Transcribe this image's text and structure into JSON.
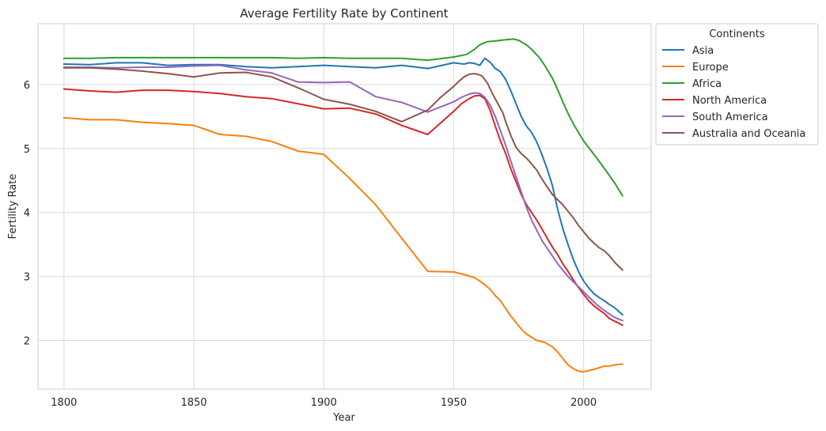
{
  "chart_data": {
    "type": "line",
    "title": "Average Fertility Rate by Continent",
    "xlabel": "Year",
    "ylabel": "Fertility Rate",
    "xlim": [
      1790,
      2026
    ],
    "ylim": [
      1.24,
      6.95
    ],
    "xticks": [
      1800,
      1850,
      1900,
      1950,
      2000
    ],
    "yticks": [
      2,
      3,
      4,
      5,
      6
    ],
    "grid": true,
    "legend": {
      "title": "Continents",
      "position": "outside-right-top"
    },
    "series": [
      {
        "name": "Asia",
        "color": "#1f77b4",
        "points": [
          [
            1800,
            6.32
          ],
          [
            1810,
            6.31
          ],
          [
            1820,
            6.34
          ],
          [
            1830,
            6.34
          ],
          [
            1840,
            6.3
          ],
          [
            1850,
            6.31
          ],
          [
            1860,
            6.31
          ],
          [
            1870,
            6.28
          ],
          [
            1880,
            6.26
          ],
          [
            1890,
            6.28
          ],
          [
            1900,
            6.3
          ],
          [
            1910,
            6.28
          ],
          [
            1920,
            6.26
          ],
          [
            1930,
            6.3
          ],
          [
            1940,
            6.25
          ],
          [
            1950,
            6.34
          ],
          [
            1952,
            6.33
          ],
          [
            1954,
            6.32
          ],
          [
            1956,
            6.34
          ],
          [
            1958,
            6.33
          ],
          [
            1960,
            6.3
          ],
          [
            1962,
            6.41
          ],
          [
            1964,
            6.35
          ],
          [
            1966,
            6.25
          ],
          [
            1968,
            6.2
          ],
          [
            1970,
            6.08
          ],
          [
            1972,
            5.9
          ],
          [
            1974,
            5.7
          ],
          [
            1976,
            5.5
          ],
          [
            1978,
            5.35
          ],
          [
            1980,
            5.25
          ],
          [
            1982,
            5.1
          ],
          [
            1984,
            4.9
          ],
          [
            1986,
            4.68
          ],
          [
            1988,
            4.42
          ],
          [
            1990,
            4.05
          ],
          [
            1992,
            3.75
          ],
          [
            1994,
            3.5
          ],
          [
            1996,
            3.27
          ],
          [
            1998,
            3.08
          ],
          [
            2000,
            2.93
          ],
          [
            2002,
            2.82
          ],
          [
            2004,
            2.73
          ],
          [
            2006,
            2.67
          ],
          [
            2008,
            2.62
          ],
          [
            2010,
            2.56
          ],
          [
            2012,
            2.51
          ],
          [
            2015,
            2.4
          ]
        ]
      },
      {
        "name": "Europe",
        "color": "#ff7f0e",
        "points": [
          [
            1800,
            5.48
          ],
          [
            1810,
            5.45
          ],
          [
            1820,
            5.45
          ],
          [
            1830,
            5.41
          ],
          [
            1840,
            5.39
          ],
          [
            1850,
            5.36
          ],
          [
            1860,
            5.22
          ],
          [
            1870,
            5.19
          ],
          [
            1880,
            5.11
          ],
          [
            1890,
            4.96
          ],
          [
            1900,
            4.91
          ],
          [
            1910,
            4.53
          ],
          [
            1920,
            4.12
          ],
          [
            1930,
            3.6
          ],
          [
            1940,
            3.08
          ],
          [
            1950,
            3.07
          ],
          [
            1955,
            3.02
          ],
          [
            1958,
            2.98
          ],
          [
            1960,
            2.93
          ],
          [
            1962,
            2.87
          ],
          [
            1964,
            2.8
          ],
          [
            1966,
            2.7
          ],
          [
            1968,
            2.62
          ],
          [
            1970,
            2.5
          ],
          [
            1972,
            2.38
          ],
          [
            1974,
            2.28
          ],
          [
            1976,
            2.18
          ],
          [
            1978,
            2.1
          ],
          [
            1980,
            2.05
          ],
          [
            1982,
            2.0
          ],
          [
            1985,
            1.97
          ],
          [
            1988,
            1.9
          ],
          [
            1990,
            1.82
          ],
          [
            1992,
            1.72
          ],
          [
            1994,
            1.62
          ],
          [
            1996,
            1.56
          ],
          [
            1998,
            1.52
          ],
          [
            2000,
            1.51
          ],
          [
            2002,
            1.53
          ],
          [
            2005,
            1.56
          ],
          [
            2008,
            1.6
          ],
          [
            2010,
            1.6
          ],
          [
            2012,
            1.62
          ],
          [
            2015,
            1.63
          ]
        ]
      },
      {
        "name": "Africa",
        "color": "#2ca02c",
        "points": [
          [
            1800,
            6.41
          ],
          [
            1810,
            6.41
          ],
          [
            1820,
            6.42
          ],
          [
            1830,
            6.42
          ],
          [
            1840,
            6.42
          ],
          [
            1850,
            6.42
          ],
          [
            1860,
            6.42
          ],
          [
            1870,
            6.42
          ],
          [
            1880,
            6.42
          ],
          [
            1890,
            6.41
          ],
          [
            1900,
            6.42
          ],
          [
            1910,
            6.41
          ],
          [
            1920,
            6.41
          ],
          [
            1930,
            6.41
          ],
          [
            1940,
            6.38
          ],
          [
            1950,
            6.43
          ],
          [
            1955,
            6.47
          ],
          [
            1958,
            6.55
          ],
          [
            1960,
            6.62
          ],
          [
            1963,
            6.67
          ],
          [
            1966,
            6.68
          ],
          [
            1970,
            6.7
          ],
          [
            1973,
            6.71
          ],
          [
            1975,
            6.69
          ],
          [
            1978,
            6.62
          ],
          [
            1980,
            6.55
          ],
          [
            1983,
            6.42
          ],
          [
            1985,
            6.3
          ],
          [
            1988,
            6.1
          ],
          [
            1990,
            5.92
          ],
          [
            1992,
            5.73
          ],
          [
            1994,
            5.55
          ],
          [
            1996,
            5.39
          ],
          [
            1998,
            5.25
          ],
          [
            2000,
            5.12
          ],
          [
            2003,
            4.96
          ],
          [
            2006,
            4.8
          ],
          [
            2009,
            4.63
          ],
          [
            2012,
            4.46
          ],
          [
            2015,
            4.26
          ]
        ]
      },
      {
        "name": "North America",
        "color": "#d62728",
        "points": [
          [
            1800,
            5.93
          ],
          [
            1810,
            5.9
          ],
          [
            1820,
            5.88
          ],
          [
            1830,
            5.91
          ],
          [
            1840,
            5.91
          ],
          [
            1850,
            5.89
          ],
          [
            1860,
            5.86
          ],
          [
            1870,
            5.81
          ],
          [
            1880,
            5.78
          ],
          [
            1890,
            5.7
          ],
          [
            1900,
            5.62
          ],
          [
            1910,
            5.63
          ],
          [
            1920,
            5.54
          ],
          [
            1930,
            5.36
          ],
          [
            1940,
            5.22
          ],
          [
            1945,
            5.4
          ],
          [
            1950,
            5.58
          ],
          [
            1953,
            5.7
          ],
          [
            1956,
            5.78
          ],
          [
            1958,
            5.82
          ],
          [
            1960,
            5.83
          ],
          [
            1962,
            5.78
          ],
          [
            1964,
            5.6
          ],
          [
            1966,
            5.35
          ],
          [
            1968,
            5.12
          ],
          [
            1970,
            4.92
          ],
          [
            1972,
            4.68
          ],
          [
            1974,
            4.48
          ],
          [
            1976,
            4.28
          ],
          [
            1978,
            4.12
          ],
          [
            1980,
            4.0
          ],
          [
            1982,
            3.88
          ],
          [
            1984,
            3.74
          ],
          [
            1986,
            3.6
          ],
          [
            1988,
            3.46
          ],
          [
            1990,
            3.34
          ],
          [
            1992,
            3.2
          ],
          [
            1994,
            3.08
          ],
          [
            1996,
            2.95
          ],
          [
            1998,
            2.83
          ],
          [
            2000,
            2.72
          ],
          [
            2002,
            2.62
          ],
          [
            2004,
            2.54
          ],
          [
            2006,
            2.48
          ],
          [
            2008,
            2.42
          ],
          [
            2010,
            2.34
          ],
          [
            2012,
            2.3
          ],
          [
            2015,
            2.24
          ]
        ]
      },
      {
        "name": "South America",
        "color": "#9467bd",
        "points": [
          [
            1800,
            6.27
          ],
          [
            1810,
            6.27
          ],
          [
            1820,
            6.26
          ],
          [
            1830,
            6.27
          ],
          [
            1840,
            6.27
          ],
          [
            1850,
            6.29
          ],
          [
            1860,
            6.3
          ],
          [
            1870,
            6.23
          ],
          [
            1880,
            6.18
          ],
          [
            1890,
            6.04
          ],
          [
            1900,
            6.03
          ],
          [
            1910,
            6.04
          ],
          [
            1920,
            5.81
          ],
          [
            1930,
            5.72
          ],
          [
            1940,
            5.57
          ],
          [
            1945,
            5.65
          ],
          [
            1950,
            5.73
          ],
          [
            1953,
            5.8
          ],
          [
            1956,
            5.85
          ],
          [
            1958,
            5.87
          ],
          [
            1960,
            5.86
          ],
          [
            1962,
            5.8
          ],
          [
            1964,
            5.68
          ],
          [
            1966,
            5.5
          ],
          [
            1968,
            5.28
          ],
          [
            1970,
            5.05
          ],
          [
            1972,
            4.8
          ],
          [
            1974,
            4.56
          ],
          [
            1976,
            4.32
          ],
          [
            1978,
            4.08
          ],
          [
            1980,
            3.88
          ],
          [
            1982,
            3.72
          ],
          [
            1984,
            3.56
          ],
          [
            1986,
            3.44
          ],
          [
            1988,
            3.32
          ],
          [
            1990,
            3.2
          ],
          [
            1992,
            3.1
          ],
          [
            1994,
            3.0
          ],
          [
            1996,
            2.92
          ],
          [
            1998,
            2.84
          ],
          [
            2000,
            2.76
          ],
          [
            2002,
            2.68
          ],
          [
            2004,
            2.6
          ],
          [
            2006,
            2.53
          ],
          [
            2008,
            2.47
          ],
          [
            2010,
            2.41
          ],
          [
            2012,
            2.36
          ],
          [
            2015,
            2.31
          ]
        ]
      },
      {
        "name": "Australia and Oceania",
        "color": "#8c564b",
        "points": [
          [
            1800,
            6.26
          ],
          [
            1810,
            6.26
          ],
          [
            1820,
            6.24
          ],
          [
            1830,
            6.21
          ],
          [
            1840,
            6.17
          ],
          [
            1850,
            6.12
          ],
          [
            1860,
            6.18
          ],
          [
            1870,
            6.19
          ],
          [
            1880,
            6.12
          ],
          [
            1890,
            5.95
          ],
          [
            1900,
            5.77
          ],
          [
            1910,
            5.69
          ],
          [
            1920,
            5.58
          ],
          [
            1930,
            5.42
          ],
          [
            1940,
            5.6
          ],
          [
            1945,
            5.8
          ],
          [
            1950,
            5.97
          ],
          [
            1952,
            6.05
          ],
          [
            1954,
            6.12
          ],
          [
            1956,
            6.16
          ],
          [
            1958,
            6.17
          ],
          [
            1960,
            6.15
          ],
          [
            1961,
            6.13
          ],
          [
            1963,
            6.02
          ],
          [
            1965,
            5.85
          ],
          [
            1967,
            5.7
          ],
          [
            1969,
            5.55
          ],
          [
            1970,
            5.42
          ],
          [
            1972,
            5.2
          ],
          [
            1974,
            5.02
          ],
          [
            1976,
            4.92
          ],
          [
            1978,
            4.85
          ],
          [
            1980,
            4.76
          ],
          [
            1982,
            4.66
          ],
          [
            1984,
            4.52
          ],
          [
            1986,
            4.4
          ],
          [
            1988,
            4.28
          ],
          [
            1990,
            4.2
          ],
          [
            1992,
            4.12
          ],
          [
            1994,
            4.02
          ],
          [
            1996,
            3.92
          ],
          [
            1998,
            3.8
          ],
          [
            2000,
            3.7
          ],
          [
            2002,
            3.6
          ],
          [
            2004,
            3.52
          ],
          [
            2006,
            3.45
          ],
          [
            2008,
            3.4
          ],
          [
            2010,
            3.32
          ],
          [
            2012,
            3.22
          ],
          [
            2015,
            3.1
          ]
        ]
      }
    ]
  }
}
